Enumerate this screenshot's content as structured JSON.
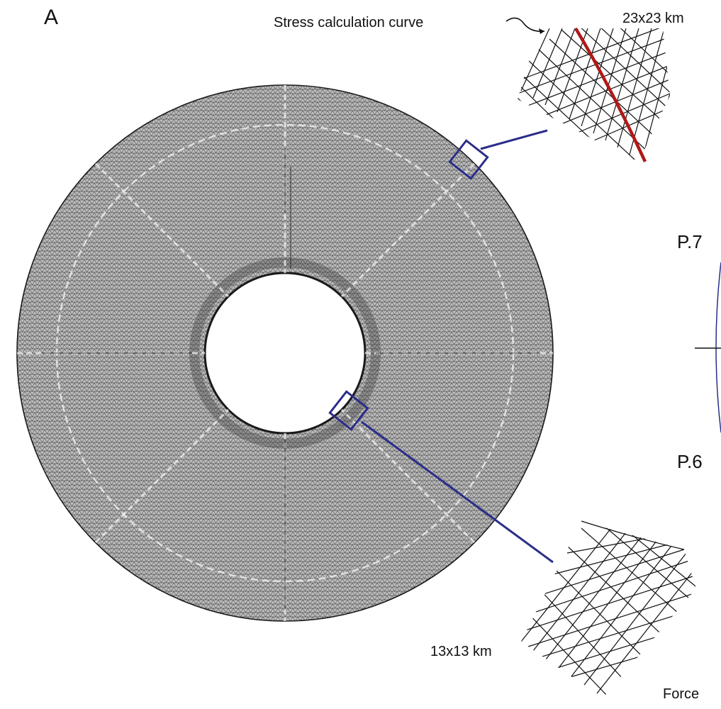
{
  "panel_label": "A",
  "callouts": {
    "stress_curve": "Stress calculation curve",
    "top_inset_size": "23x23 km",
    "bottom_inset_size": "13x13 km",
    "force_label": "Force"
  },
  "point_labels": {
    "upper": "P.7",
    "lower": "P.6"
  },
  "colors": {
    "mesh_fill": "#b4b4b4",
    "mesh_line": "#1a1a1a",
    "highlight_box": "#2b2d8a",
    "stress_curve": "#b01818",
    "text": "#111111"
  }
}
